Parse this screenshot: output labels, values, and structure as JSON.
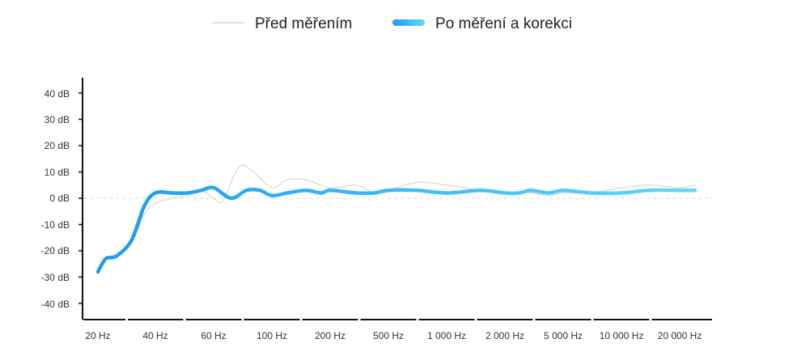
{
  "chart_data": {
    "type": "line",
    "title": "",
    "xlabel": "",
    "ylabel": "",
    "x_scale": "log",
    "x_ticks": [
      "20 Hz",
      "40 Hz",
      "60 Hz",
      "100 Hz",
      "200 Hz",
      "500 Hz",
      "1 000 Hz",
      "2 000 Hz",
      "5 000 Hz",
      "10 000 Hz",
      "20 000 Hz"
    ],
    "y_ticks": [
      "40 dB",
      "30 dB",
      "20 dB",
      "10 dB",
      "0 dB",
      "-10 dB",
      "-20 dB",
      "-30 dB",
      "-40 dB"
    ],
    "ylim": [
      -45,
      45
    ],
    "legend_position": "top-center",
    "reference_line": 0,
    "series": [
      {
        "name": "Před měřením",
        "color": "#d9d9d9",
        "x": [
          "20 Hz",
          "22 Hz",
          "25 Hz",
          "30 Hz",
          "35 Hz",
          "40 Hz",
          "45 Hz",
          "50 Hz",
          "55 Hz",
          "60 Hz",
          "65 Hz",
          "75 Hz",
          "85 Hz",
          "100 Hz",
          "120 Hz",
          "150 Hz",
          "200 Hz",
          "300 Hz",
          "400 Hz",
          "500 Hz",
          "700 Hz",
          "1 000 Hz",
          "1 500 Hz",
          "2 000 Hz",
          "3 000 Hz",
          "4 000 Hz",
          "5 000 Hz",
          "7 000 Hz",
          "10 000 Hz",
          "14 000 Hz",
          "20 000 Hz",
          "24 000 Hz"
        ],
        "values": [
          -28,
          -23,
          -22,
          -17,
          -6,
          -2,
          0,
          1,
          3,
          0,
          -1,
          12,
          10,
          4,
          7,
          7,
          4,
          5,
          2,
          3,
          6,
          5,
          3,
          2,
          2,
          1,
          2,
          2,
          4,
          5,
          4,
          5
        ]
      },
      {
        "name": "Po měření a korekci",
        "color_start": "#1e9bf0",
        "color_end": "#5fdcf5",
        "x": [
          "20 Hz",
          "22 Hz",
          "25 Hz",
          "30 Hz",
          "35 Hz",
          "40 Hz",
          "45 Hz",
          "50 Hz",
          "55 Hz",
          "60 Hz",
          "70 Hz",
          "80 Hz",
          "90 Hz",
          "100 Hz",
          "120 Hz",
          "150 Hz",
          "180 Hz",
          "200 Hz",
          "300 Hz",
          "400 Hz",
          "500 Hz",
          "700 Hz",
          "1 000 Hz",
          "1 500 Hz",
          "2 000 Hz",
          "2 500 Hz",
          "3 000 Hz",
          "4 000 Hz",
          "5 000 Hz",
          "7 000 Hz",
          "10 000 Hz",
          "14 000 Hz",
          "20 000 Hz",
          "24 000 Hz"
        ],
        "values": [
          -28,
          -23,
          -22,
          -16,
          -3,
          2,
          2,
          2,
          3,
          4,
          0,
          3,
          3,
          1,
          2,
          3,
          2,
          3,
          2,
          2,
          3,
          3,
          2,
          3,
          2,
          2,
          3,
          2,
          3,
          2,
          2,
          3,
          3,
          3
        ]
      }
    ]
  }
}
